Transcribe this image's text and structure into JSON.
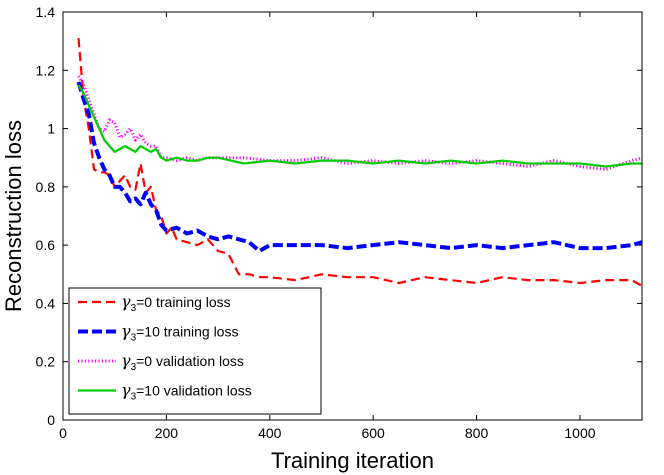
{
  "chart_data": {
    "type": "line",
    "title": "",
    "xlabel": "Training iteration",
    "ylabel": "Reconstruction loss",
    "xlim": [
      0,
      1120
    ],
    "ylim": [
      0,
      1.4
    ],
    "xticks": [
      0,
      200,
      400,
      600,
      800,
      1000
    ],
    "xtick_labels": [
      "0",
      "200",
      "400",
      "600",
      "800",
      "1000"
    ],
    "yticks": [
      0,
      0.2,
      0.4,
      0.6,
      0.8,
      1.0,
      1.2,
      1.4
    ],
    "ytick_labels": [
      "0",
      "0.2",
      "0.4",
      "0.6",
      "0.8",
      "1",
      "1.2",
      "1.4"
    ],
    "grid": false,
    "legend_position": "bottom-left",
    "series": [
      {
        "name": "γ3=0 training loss",
        "legend_prefix": "γ",
        "legend_sub": "3",
        "legend_suffix": "=0   training loss",
        "color": "#ff0000",
        "style": "dashed",
        "x": [
          30,
          40,
          50,
          60,
          70,
          80,
          90,
          100,
          110,
          120,
          130,
          140,
          150,
          160,
          170,
          180,
          190,
          200,
          210,
          220,
          240,
          260,
          280,
          300,
          320,
          340,
          360,
          380,
          400,
          450,
          500,
          550,
          600,
          650,
          700,
          750,
          800,
          850,
          900,
          950,
          1000,
          1050,
          1100,
          1120
        ],
        "y": [
          1.31,
          1.1,
          1.0,
          0.86,
          0.85,
          0.85,
          0.84,
          0.8,
          0.82,
          0.84,
          0.8,
          0.79,
          0.88,
          0.78,
          0.8,
          0.72,
          0.7,
          0.64,
          0.66,
          0.62,
          0.61,
          0.6,
          0.62,
          0.58,
          0.57,
          0.5,
          0.5,
          0.49,
          0.49,
          0.48,
          0.5,
          0.49,
          0.49,
          0.47,
          0.49,
          0.48,
          0.47,
          0.49,
          0.48,
          0.48,
          0.47,
          0.48,
          0.48,
          0.46
        ]
      },
      {
        "name": "γ3=10 training loss",
        "legend_prefix": "γ",
        "legend_sub": "3",
        "legend_suffix": "=10 training loss",
        "color": "#0000ff",
        "style": "bold-dashed",
        "x": [
          30,
          40,
          50,
          60,
          70,
          80,
          90,
          100,
          110,
          120,
          130,
          140,
          150,
          160,
          170,
          180,
          190,
          200,
          220,
          240,
          260,
          280,
          300,
          320,
          340,
          360,
          380,
          400,
          450,
          500,
          550,
          600,
          650,
          700,
          750,
          800,
          850,
          900,
          950,
          1000,
          1050,
          1100,
          1120
        ],
        "y": [
          1.16,
          1.1,
          1.05,
          0.95,
          0.9,
          0.86,
          0.84,
          0.8,
          0.8,
          0.78,
          0.75,
          0.76,
          0.74,
          0.78,
          0.74,
          0.72,
          0.67,
          0.65,
          0.66,
          0.64,
          0.65,
          0.63,
          0.62,
          0.63,
          0.62,
          0.61,
          0.58,
          0.6,
          0.6,
          0.6,
          0.59,
          0.6,
          0.61,
          0.6,
          0.59,
          0.6,
          0.59,
          0.6,
          0.61,
          0.59,
          0.59,
          0.6,
          0.61
        ]
      },
      {
        "name": "γ3=0 validation loss",
        "legend_prefix": "γ",
        "legend_sub": "3",
        "legend_suffix": "=0   validation loss",
        "color": "#ff00ff",
        "style": "dotted",
        "x": [
          30,
          40,
          50,
          60,
          70,
          80,
          90,
          100,
          110,
          120,
          130,
          140,
          150,
          160,
          170,
          180,
          190,
          200,
          220,
          240,
          260,
          280,
          300,
          350,
          400,
          450,
          500,
          550,
          600,
          650,
          700,
          750,
          800,
          850,
          900,
          950,
          1000,
          1050,
          1100,
          1120
        ],
        "y": [
          1.18,
          1.15,
          1.1,
          1.05,
          1.0,
          0.99,
          1.03,
          1.02,
          0.97,
          0.98,
          1.0,
          0.96,
          0.98,
          0.95,
          0.94,
          0.94,
          0.9,
          0.9,
          0.89,
          0.9,
          0.89,
          0.9,
          0.9,
          0.9,
          0.89,
          0.89,
          0.9,
          0.88,
          0.89,
          0.88,
          0.89,
          0.88,
          0.89,
          0.88,
          0.87,
          0.89,
          0.87,
          0.86,
          0.89,
          0.9
        ]
      },
      {
        "name": "γ3=10 validation loss",
        "legend_prefix": "γ",
        "legend_sub": "3",
        "legend_suffix": "=10 validation loss",
        "color": "#00cc00",
        "style": "solid",
        "x": [
          30,
          40,
          50,
          60,
          70,
          80,
          90,
          100,
          110,
          120,
          130,
          140,
          150,
          160,
          170,
          180,
          190,
          200,
          220,
          240,
          260,
          280,
          300,
          350,
          400,
          450,
          500,
          550,
          600,
          650,
          700,
          750,
          800,
          850,
          900,
          950,
          1000,
          1050,
          1100,
          1120
        ],
        "y": [
          1.15,
          1.12,
          1.08,
          1.04,
          1.0,
          0.96,
          0.94,
          0.92,
          0.93,
          0.94,
          0.93,
          0.92,
          0.94,
          0.93,
          0.92,
          0.93,
          0.9,
          0.89,
          0.9,
          0.89,
          0.89,
          0.9,
          0.9,
          0.88,
          0.89,
          0.88,
          0.89,
          0.89,
          0.88,
          0.89,
          0.88,
          0.89,
          0.88,
          0.89,
          0.88,
          0.88,
          0.88,
          0.87,
          0.88,
          0.88
        ]
      }
    ]
  }
}
